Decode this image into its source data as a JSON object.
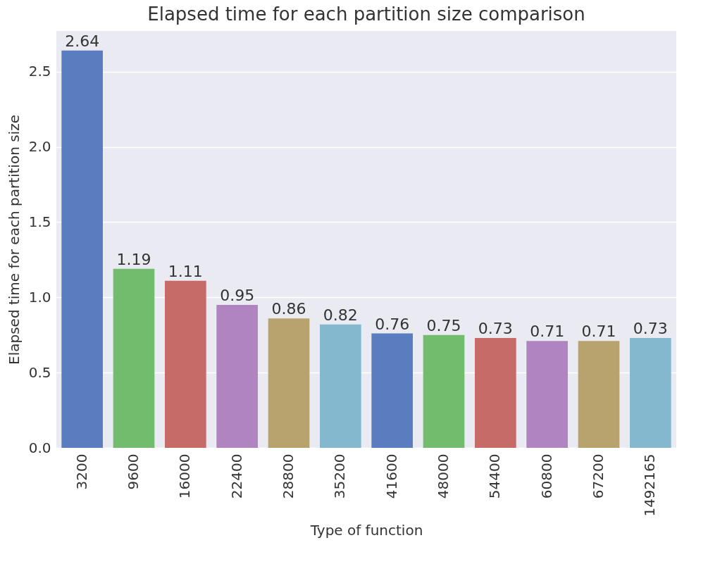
{
  "chart_data": {
    "type": "bar",
    "title": "Elapsed time for each partition size comparison",
    "xlabel": "Type of function",
    "ylabel": "Elapsed time for each partition size",
    "categories": [
      "3200",
      "9600",
      "16000",
      "22400",
      "28800",
      "35200",
      "41600",
      "48000",
      "54400",
      "60800",
      "67200",
      "1492165"
    ],
    "values": [
      2.64,
      1.19,
      1.11,
      0.95,
      0.86,
      0.82,
      0.76,
      0.75,
      0.73,
      0.71,
      0.71,
      0.73
    ],
    "colors": [
      "#5a7dc0",
      "#71bd6d",
      "#c76b69",
      "#b084be",
      "#b8a36e",
      "#83b8cf",
      "#5a7dc0",
      "#71bd6d",
      "#c76b69",
      "#b084be",
      "#b8a36e",
      "#83b8cf"
    ],
    "ylim": [
      0,
      2.77
    ],
    "yticks": [
      {
        "value": 0,
        "label": "0.0"
      },
      0.5,
      {
        "value": 1,
        "label": "1.0"
      },
      1.5,
      {
        "value": 2,
        "label": "2.0"
      },
      2.5
    ],
    "grid": "y",
    "data_labels": true
  }
}
